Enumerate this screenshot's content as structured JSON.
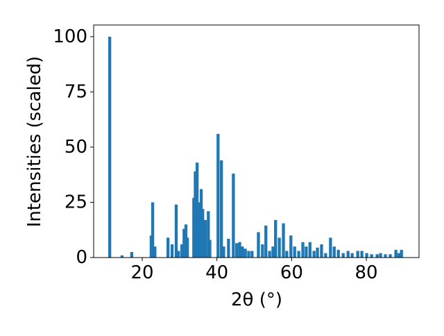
{
  "chart_data": {
    "type": "bar",
    "x_label": "2θ (°)",
    "y_label": "Intensities (scaled)",
    "x": [
      11.3,
      14.6,
      17.2,
      22.4,
      22.8,
      23.4,
      26.9,
      28,
      29.1,
      29.7,
      30.6,
      31.2,
      31.7,
      32.1,
      33.8,
      34.2,
      34.7,
      35.1,
      35.8,
      36.2,
      36.9,
      37.7,
      38.1,
      40.3,
      41.2,
      41.8,
      43.1,
      44.4,
      45.3,
      46.1,
      46.8,
      47.6,
      48.5,
      49.4,
      51.1,
      52.2,
      53.1,
      54.1,
      55,
      55.7,
      56.7,
      57.8,
      58.7,
      59.8,
      60.8,
      61.9,
      63,
      63.9,
      64.9,
      66,
      66.9,
      68,
      69.1,
      70.4,
      71.4,
      72.5,
      73.8,
      75.1,
      76.2,
      77.7,
      78.8,
      80.1,
      81.4,
      82.9,
      83.8,
      85.1,
      86.4,
      87.9,
      88.7,
      89.4
    ],
    "values": [
      100,
      1,
      2.5,
      10,
      25,
      5,
      9,
      6,
      24,
      3,
      6,
      13,
      15,
      9,
      27,
      39,
      43,
      25,
      31,
      22,
      17,
      21,
      8,
      56,
      44,
      5,
      8.5,
      38,
      6.5,
      7,
      5,
      4,
      3,
      3,
      11.5,
      6,
      14.5,
      3,
      5,
      17,
      9,
      15.5,
      3,
      10,
      5,
      3,
      7,
      5,
      7,
      3,
      4.5,
      6,
      2,
      9,
      5,
      3.5,
      2,
      3,
      2,
      3,
      3,
      2,
      1.5,
      1.5,
      2,
      1.5,
      1.5,
      3.5,
      2,
      3.5
    ],
    "color": "#1f77b4",
    "xlim": [
      7,
      94.1
    ],
    "xticks": [
      20,
      40,
      60,
      80
    ],
    "ylim": [
      0,
      105.3
    ],
    "yticks": [
      0,
      25,
      50,
      75,
      100
    ]
  }
}
